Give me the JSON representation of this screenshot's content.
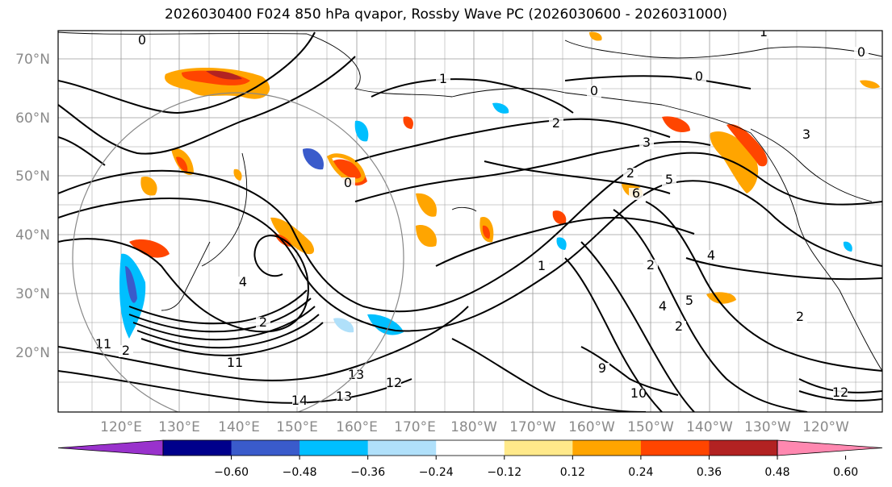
{
  "title": "2026030400 F024 850 hPa qvapor, Rossby Wave PC (2026030600 - 2026031000)",
  "lat_labels": [
    "70°N",
    "60°N",
    "50°N",
    "40°N",
    "30°N",
    "20°N"
  ],
  "lon_labels": [
    "120°E",
    "130°E",
    "140°E",
    "150°E",
    "160°E",
    "170°E",
    "180°W",
    "170°W",
    "160°W",
    "150°W",
    "140°W",
    "130°W",
    "120°W"
  ],
  "colorbar": {
    "ticks": [
      "−0.60",
      "−0.48",
      "−0.36",
      "−0.24",
      "−0.12",
      "0.12",
      "0.24",
      "0.36",
      "0.48",
      "0.60"
    ],
    "colors": [
      "#9932cc",
      "#00008b",
      "#3a5bcb",
      "#00bfff",
      "#b0e0fa",
      "#ffffff",
      "#ffe98a",
      "#ffa500",
      "#ff4500",
      "#b22222",
      "#ff88b0"
    ]
  },
  "contour_labels": [
    "0",
    "0",
    "1",
    "0",
    "0",
    "1",
    "3",
    "3",
    "2",
    "5",
    "0",
    "2",
    "6",
    "2",
    "4",
    "2",
    "2",
    "1",
    "4",
    "5",
    "2",
    "4",
    "11",
    "2",
    "11",
    "12",
    "14",
    "9",
    "10",
    "12",
    "13",
    "13"
  ]
}
